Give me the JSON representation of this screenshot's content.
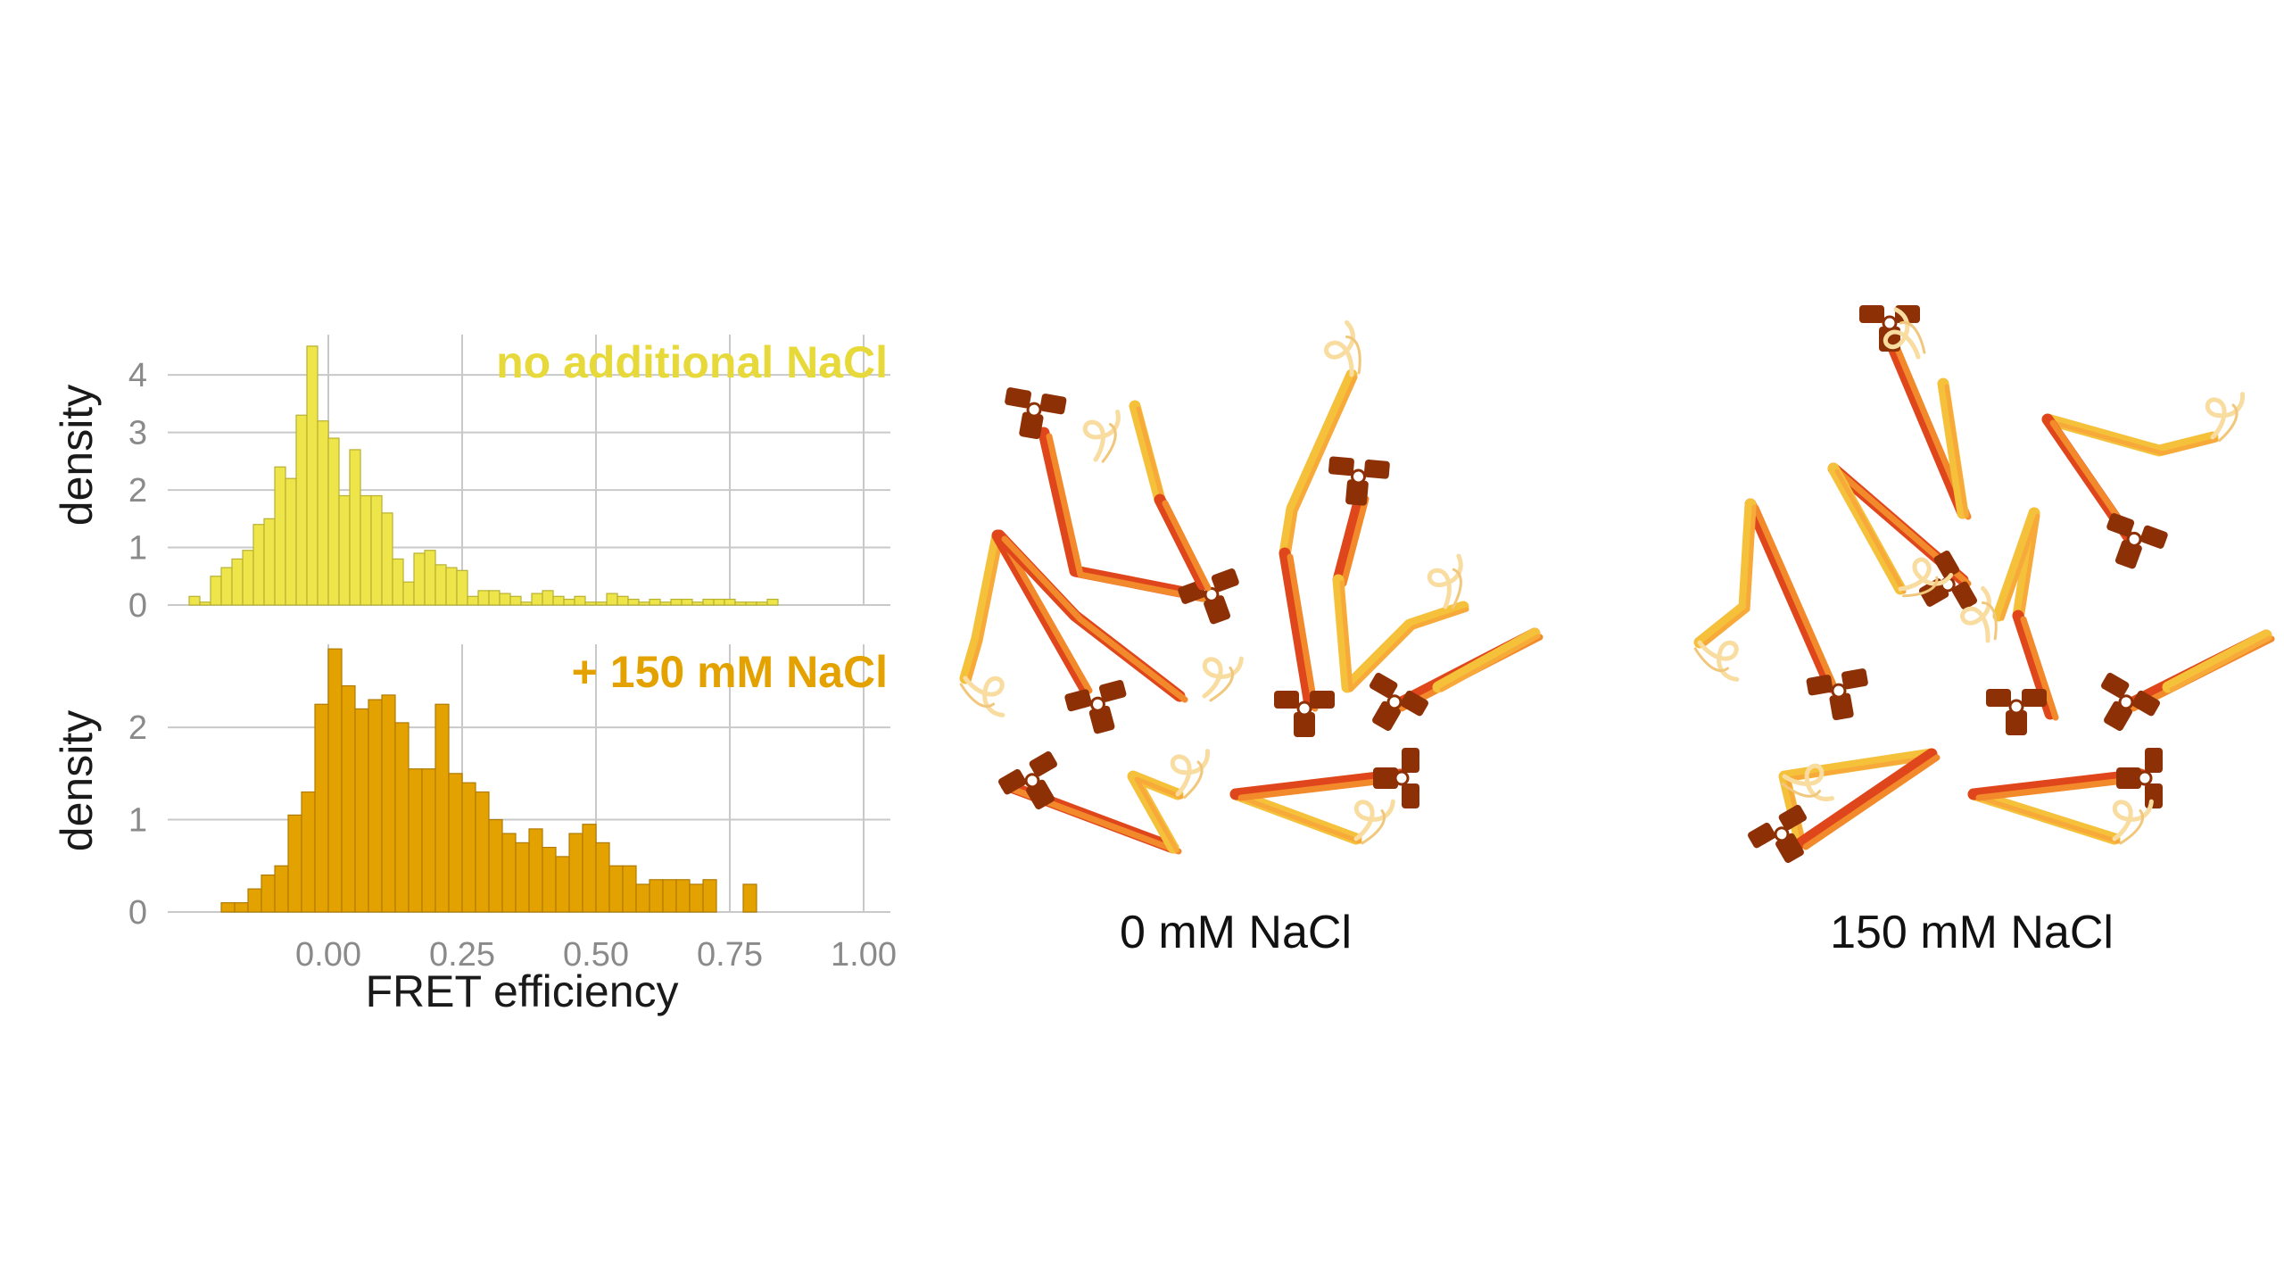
{
  "chart_data": [
    {
      "type": "bar",
      "panel": "top",
      "title": "no additional NaCl",
      "ylabel": "density",
      "xlabel": "",
      "xlim": [
        -0.25,
        1.05
      ],
      "ylim": [
        0,
        4.7
      ],
      "bin_width": 0.02,
      "x_ticks": [
        0.0,
        0.25,
        0.5,
        0.75,
        1.0
      ],
      "y_ticks": [
        0,
        1,
        2,
        3,
        4
      ],
      "grid": true,
      "color": "#ede54a",
      "bin_starts": [
        -0.26,
        -0.24,
        -0.22,
        -0.2,
        -0.18,
        -0.16,
        -0.14,
        -0.12,
        -0.1,
        -0.08,
        -0.06,
        -0.04,
        -0.02,
        0.0,
        0.02,
        0.04,
        0.06,
        0.08,
        0.1,
        0.12,
        0.14,
        0.16,
        0.18,
        0.2,
        0.22,
        0.24,
        0.26,
        0.28,
        0.3,
        0.32,
        0.34,
        0.36,
        0.38,
        0.4,
        0.42,
        0.44,
        0.46,
        0.48,
        0.5,
        0.52,
        0.54,
        0.56,
        0.58,
        0.6,
        0.62,
        0.64,
        0.66,
        0.68,
        0.7,
        0.72,
        0.74,
        0.76,
        0.78,
        0.8,
        0.82
      ],
      "values": [
        0.15,
        0.05,
        0.5,
        0.65,
        0.8,
        0.95,
        1.4,
        1.5,
        2.4,
        2.2,
        3.3,
        4.5,
        3.2,
        2.9,
        1.9,
        2.7,
        1.9,
        1.9,
        1.6,
        0.8,
        0.4,
        0.9,
        0.95,
        0.7,
        0.65,
        0.6,
        0.15,
        0.25,
        0.25,
        0.2,
        0.15,
        0.05,
        0.2,
        0.25,
        0.15,
        0.1,
        0.15,
        0.05,
        0.05,
        0.2,
        0.15,
        0.1,
        0.05,
        0.1,
        0.05,
        0.1,
        0.1,
        0.05,
        0.1,
        0.1,
        0.1,
        0.05,
        0.05,
        0.05,
        0.1
      ]
    },
    {
      "type": "bar",
      "panel": "bottom",
      "title": "+ 150 mM NaCl",
      "ylabel": "density",
      "xlabel": "FRET efficiency",
      "xlim": [
        -0.25,
        1.05
      ],
      "ylim": [
        0,
        2.9
      ],
      "bin_width": 0.025,
      "x_ticks": [
        0.0,
        0.25,
        0.5,
        0.75,
        1.0
      ],
      "x_tick_labels": [
        "0.00",
        "0.25",
        "0.50",
        "0.75",
        "1.00"
      ],
      "y_ticks": [
        0,
        1,
        2
      ],
      "grid": true,
      "color": "#e3a200",
      "bin_starts": [
        -0.2,
        -0.175,
        -0.15,
        -0.125,
        -0.1,
        -0.075,
        -0.05,
        -0.025,
        0.0,
        0.025,
        0.05,
        0.075,
        0.1,
        0.125,
        0.15,
        0.175,
        0.2,
        0.225,
        0.25,
        0.275,
        0.3,
        0.325,
        0.35,
        0.375,
        0.4,
        0.425,
        0.45,
        0.475,
        0.5,
        0.525,
        0.55,
        0.575,
        0.6,
        0.625,
        0.65,
        0.675,
        0.7,
        0.725,
        0.75,
        0.775,
        0.8,
        0.825
      ],
      "values": [
        0.1,
        0.1,
        0.25,
        0.4,
        0.5,
        1.05,
        1.3,
        2.25,
        2.85,
        2.45,
        2.2,
        2.3,
        2.35,
        2.05,
        1.55,
        1.55,
        2.25,
        1.5,
        1.4,
        1.3,
        1.0,
        0.85,
        0.75,
        0.9,
        0.7,
        0.6,
        0.85,
        0.95,
        0.75,
        0.5,
        0.5,
        0.3,
        0.35,
        0.35,
        0.35,
        0.3,
        0.35,
        0.0,
        0.0,
        0.3,
        0.0,
        0.0
      ]
    }
  ],
  "illustration": {
    "left_label": "0 mM NaCl",
    "right_label": "150 mM NaCl",
    "colors": {
      "red_chain": "#e0461b",
      "orange_chain": "#f28a2c",
      "yellow_chain": "#f5c13a",
      "head": "#8e3006",
      "tail": "#f8dca0"
    }
  }
}
